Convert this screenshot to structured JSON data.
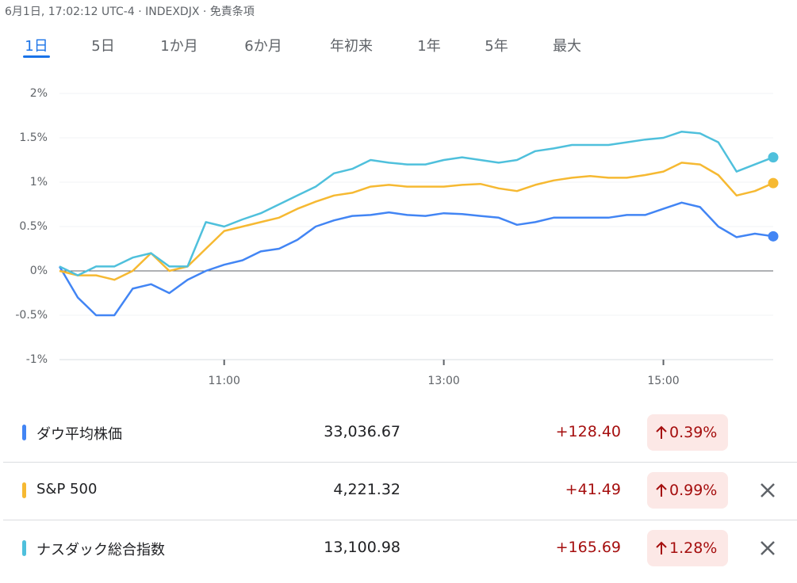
{
  "header": {
    "text": "6月1日, 17:02:12 UTC-4 · INDEXDJX · 免責条項"
  },
  "tabs": {
    "items": [
      "1日",
      "5日",
      "1か月",
      "6か月",
      "年初来",
      "1年",
      "5年",
      "最大"
    ],
    "selected": 0
  },
  "chart_data": {
    "type": "line",
    "x": [
      "09:30",
      "09:40",
      "09:50",
      "10:00",
      "10:10",
      "10:20",
      "10:30",
      "10:40",
      "10:50",
      "11:00",
      "11:10",
      "11:20",
      "11:30",
      "11:40",
      "11:50",
      "12:00",
      "12:10",
      "12:20",
      "12:30",
      "12:40",
      "12:50",
      "13:00",
      "13:10",
      "13:20",
      "13:30",
      "13:40",
      "13:50",
      "14:00",
      "14:10",
      "14:20",
      "14:30",
      "14:40",
      "14:50",
      "15:00",
      "15:10",
      "15:20",
      "15:30",
      "15:40",
      "15:50",
      "16:00"
    ],
    "xlim": [
      "09:30",
      "16:00"
    ],
    "xticks": [
      "11:00",
      "13:00",
      "15:00"
    ],
    "ylim": [
      -1,
      2
    ],
    "yticks": [
      {
        "value": -1,
        "label": "-1%"
      },
      {
        "value": -0.5,
        "label": "-0.5%"
      },
      {
        "value": 0,
        "label": "0%"
      },
      {
        "value": 0.5,
        "label": "0.5%"
      },
      {
        "value": 1,
        "label": "1%"
      },
      {
        "value": 1.5,
        "label": "1.5%"
      },
      {
        "value": 2,
        "label": "2%"
      }
    ],
    "grid": true,
    "series": [
      {
        "name": "ダウ平均株価",
        "color": "#4285f4",
        "values": [
          0.05,
          -0.3,
          -0.5,
          -0.5,
          -0.2,
          -0.15,
          -0.25,
          -0.1,
          0.0,
          0.07,
          0.12,
          0.22,
          0.25,
          0.35,
          0.5,
          0.57,
          0.62,
          0.63,
          0.66,
          0.63,
          0.62,
          0.65,
          0.64,
          0.62,
          0.6,
          0.52,
          0.55,
          0.6,
          0.6,
          0.6,
          0.6,
          0.63,
          0.63,
          0.7,
          0.77,
          0.72,
          0.5,
          0.38,
          0.42,
          0.39
        ]
      },
      {
        "name": "S&P 500",
        "color": "#f6b932",
        "values": [
          0.0,
          -0.05,
          -0.05,
          -0.1,
          0.0,
          0.2,
          0.0,
          0.05,
          0.25,
          0.45,
          0.5,
          0.55,
          0.6,
          0.7,
          0.78,
          0.85,
          0.88,
          0.95,
          0.97,
          0.95,
          0.95,
          0.95,
          0.97,
          0.98,
          0.93,
          0.9,
          0.97,
          1.02,
          1.05,
          1.07,
          1.05,
          1.05,
          1.08,
          1.12,
          1.22,
          1.2,
          1.08,
          0.85,
          0.9,
          0.99
        ]
      },
      {
        "name": "ナスダック総合指数",
        "color": "#4fc0dc",
        "values": [
          0.05,
          -0.05,
          0.05,
          0.05,
          0.15,
          0.2,
          0.05,
          0.05,
          0.55,
          0.5,
          0.58,
          0.65,
          0.75,
          0.85,
          0.95,
          1.1,
          1.15,
          1.25,
          1.22,
          1.2,
          1.2,
          1.25,
          1.28,
          1.25,
          1.22,
          1.25,
          1.35,
          1.38,
          1.42,
          1.42,
          1.42,
          1.45,
          1.48,
          1.5,
          1.57,
          1.55,
          1.45,
          1.12,
          1.2,
          1.28
        ]
      }
    ]
  },
  "table": {
    "rows": [
      {
        "price": "33,036.67",
        "change": "+128.40",
        "change_percent": "0.39%"
      },
      {
        "price": "4,221.32",
        "change": "+41.49",
        "change_percent": "0.99%"
      },
      {
        "price": "13,100.98",
        "change": "+165.69",
        "change_percent": "1.28%"
      }
    ]
  }
}
